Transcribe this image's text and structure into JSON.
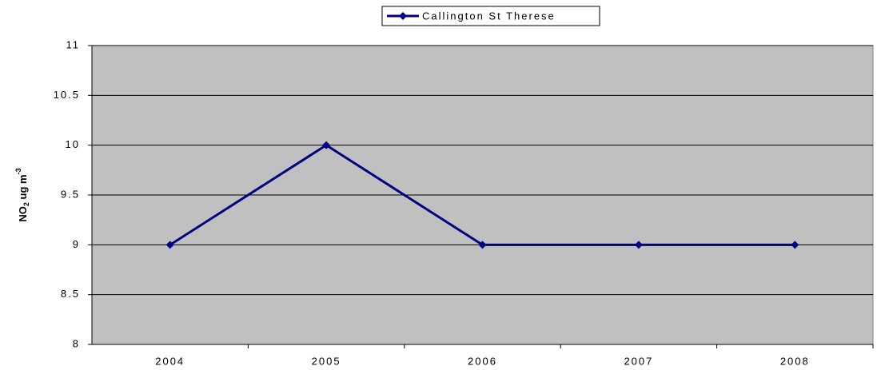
{
  "chart_data": {
    "type": "line",
    "categories": [
      "2004",
      "2005",
      "2006",
      "2007",
      "2008"
    ],
    "series": [
      {
        "name": "Callington St Therese",
        "color": "#000080",
        "values": [
          9,
          10,
          9,
          9,
          9
        ]
      }
    ],
    "y_label": {
      "main": "NO",
      "subscript": "2",
      "unit": " ug m",
      "superscript": "-3"
    },
    "ylim": [
      8,
      11
    ],
    "yticks": [
      8,
      8.5,
      9,
      9.5,
      10,
      10.5,
      11
    ],
    "grid": true,
    "plot_background": "#c0c0c0",
    "legend": "top"
  }
}
